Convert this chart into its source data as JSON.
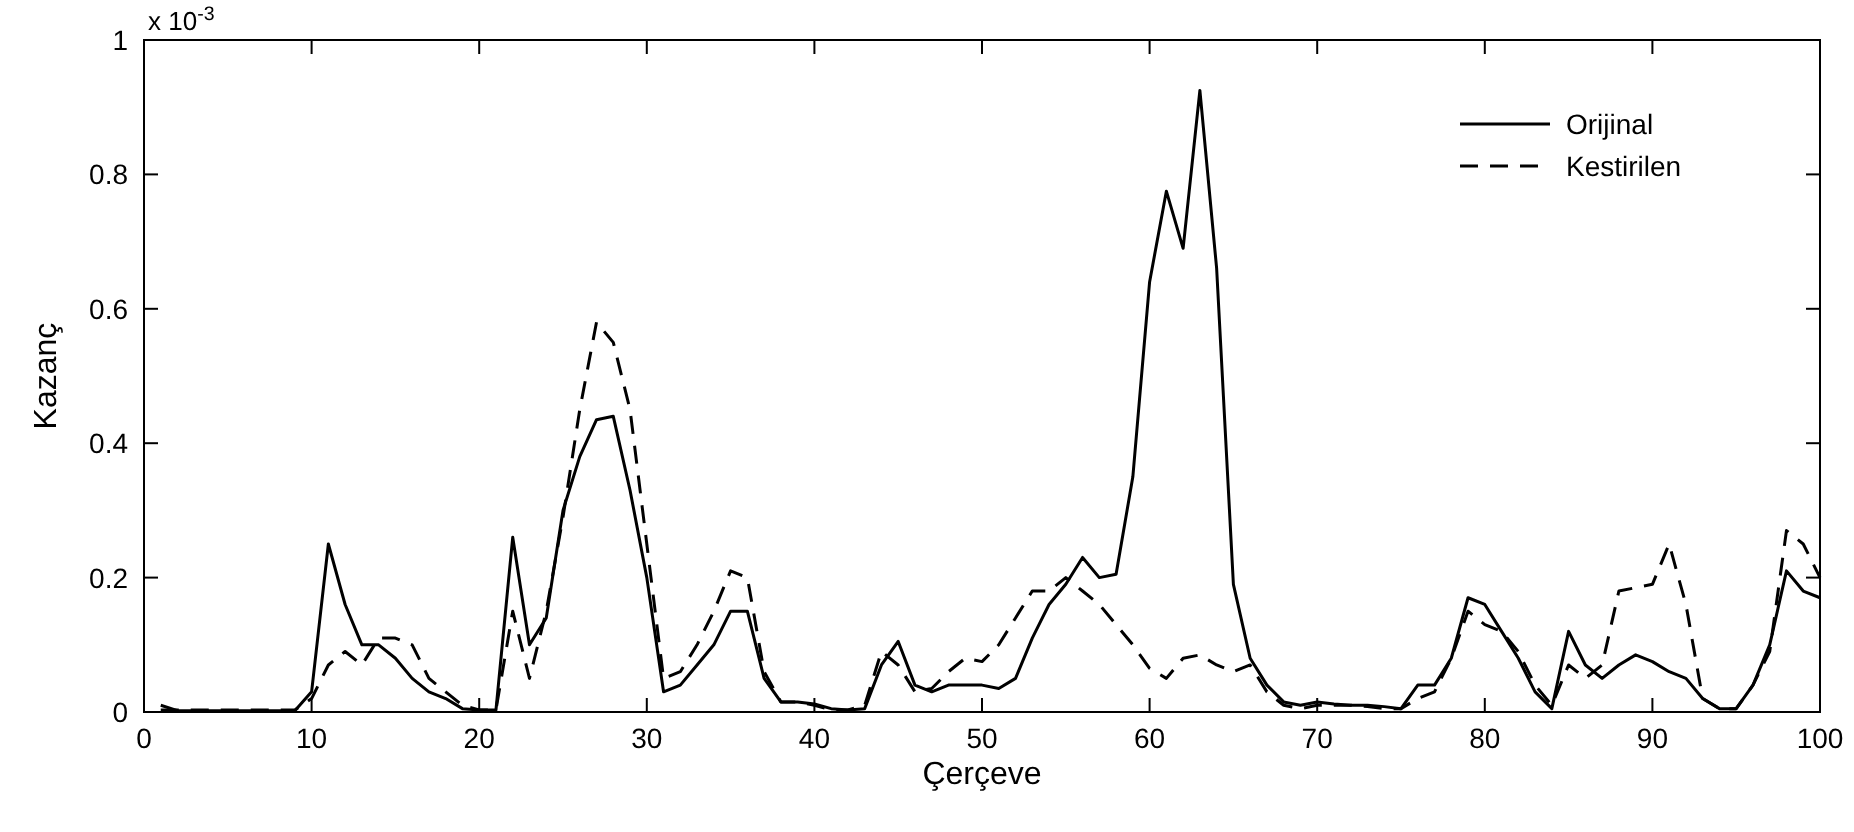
{
  "chart_data": {
    "type": "line",
    "xlabel": "Çerçeve",
    "ylabel": "Kazanç",
    "annotations": [
      "x 10$^{-3}$"
    ],
    "x": [
      1,
      2,
      3,
      4,
      5,
      6,
      7,
      8,
      9,
      10,
      11,
      12,
      13,
      14,
      15,
      16,
      17,
      18,
      19,
      20,
      21,
      22,
      23,
      24,
      25,
      26,
      27,
      28,
      29,
      30,
      31,
      32,
      33,
      34,
      35,
      36,
      37,
      38,
      39,
      40,
      41,
      42,
      43,
      44,
      45,
      46,
      47,
      48,
      49,
      50,
      51,
      52,
      53,
      54,
      55,
      56,
      57,
      58,
      59,
      60,
      61,
      62,
      63,
      64,
      65,
      66,
      67,
      68,
      69,
      70,
      71,
      72,
      73,
      74,
      75,
      76,
      77,
      78,
      79,
      80,
      81,
      82,
      83,
      84,
      85,
      86,
      87,
      88,
      89,
      90,
      91,
      92,
      93,
      94,
      95,
      96,
      97,
      98,
      99,
      100
    ],
    "series": [
      {
        "name": "Orijinal",
        "color": "#000000",
        "line_style": "solid",
        "values": [
          0.01,
          0.002,
          0.002,
          0.002,
          0.002,
          0.002,
          0.002,
          0.002,
          0.002,
          0.03,
          0.25,
          0.16,
          0.1,
          0.1,
          0.08,
          0.05,
          0.03,
          0.02,
          0.005,
          0.003,
          0.003,
          0.26,
          0.1,
          0.14,
          0.3,
          0.38,
          0.435,
          0.44,
          0.33,
          0.2,
          0.03,
          0.04,
          0.07,
          0.1,
          0.15,
          0.15,
          0.05,
          0.015,
          0.015,
          0.012,
          0.005,
          0.003,
          0.005,
          0.07,
          0.105,
          0.04,
          0.03,
          0.04,
          0.04,
          0.04,
          0.035,
          0.05,
          0.11,
          0.16,
          0.19,
          0.23,
          0.2,
          0.205,
          0.35,
          0.64,
          0.775,
          0.69,
          0.925,
          0.66,
          0.19,
          0.08,
          0.04,
          0.015,
          0.01,
          0.015,
          0.012,
          0.01,
          0.01,
          0.008,
          0.005,
          0.04,
          0.04,
          0.08,
          0.17,
          0.16,
          0.12,
          0.08,
          0.03,
          0.005,
          0.12,
          0.07,
          0.05,
          0.07,
          0.085,
          0.075,
          0.06,
          0.05,
          0.02,
          0.005,
          0.005,
          0.04,
          0.1,
          0.21,
          0.18,
          0.17
        ]
      },
      {
        "name": "Kestirilen",
        "color": "#000000",
        "line_style": "dashed",
        "values": [
          0.003,
          0.003,
          0.003,
          0.003,
          0.003,
          0.003,
          0.003,
          0.003,
          0.003,
          0.02,
          0.07,
          0.09,
          0.07,
          0.11,
          0.11,
          0.1,
          0.05,
          0.03,
          0.01,
          0.003,
          0.003,
          0.15,
          0.05,
          0.15,
          0.29,
          0.45,
          0.58,
          0.55,
          0.45,
          0.25,
          0.05,
          0.06,
          0.1,
          0.15,
          0.21,
          0.2,
          0.06,
          0.015,
          0.015,
          0.01,
          0.003,
          0.003,
          0.01,
          0.09,
          0.07,
          0.03,
          0.035,
          0.06,
          0.08,
          0.075,
          0.1,
          0.14,
          0.18,
          0.18,
          0.2,
          0.18,
          0.16,
          0.13,
          0.1,
          0.065,
          0.05,
          0.08,
          0.085,
          0.07,
          0.06,
          0.07,
          0.03,
          0.01,
          0.005,
          0.01,
          0.01,
          0.01,
          0.008,
          0.005,
          0.005,
          0.02,
          0.03,
          0.08,
          0.15,
          0.13,
          0.12,
          0.09,
          0.04,
          0.01,
          0.07,
          0.05,
          0.07,
          0.18,
          0.185,
          0.19,
          0.25,
          0.16,
          0.02,
          0.005,
          0.005,
          0.04,
          0.09,
          0.27,
          0.25,
          0.2
        ]
      }
    ],
    "xlim": [
      0,
      100
    ],
    "xticks": [
      0,
      10,
      20,
      30,
      40,
      50,
      60,
      70,
      80,
      90,
      100
    ],
    "ylim": [
      0,
      1
    ],
    "yticks": [
      0,
      0.2,
      0.4,
      0.6,
      0.8,
      1
    ],
    "grid": false,
    "legend": "top right"
  }
}
